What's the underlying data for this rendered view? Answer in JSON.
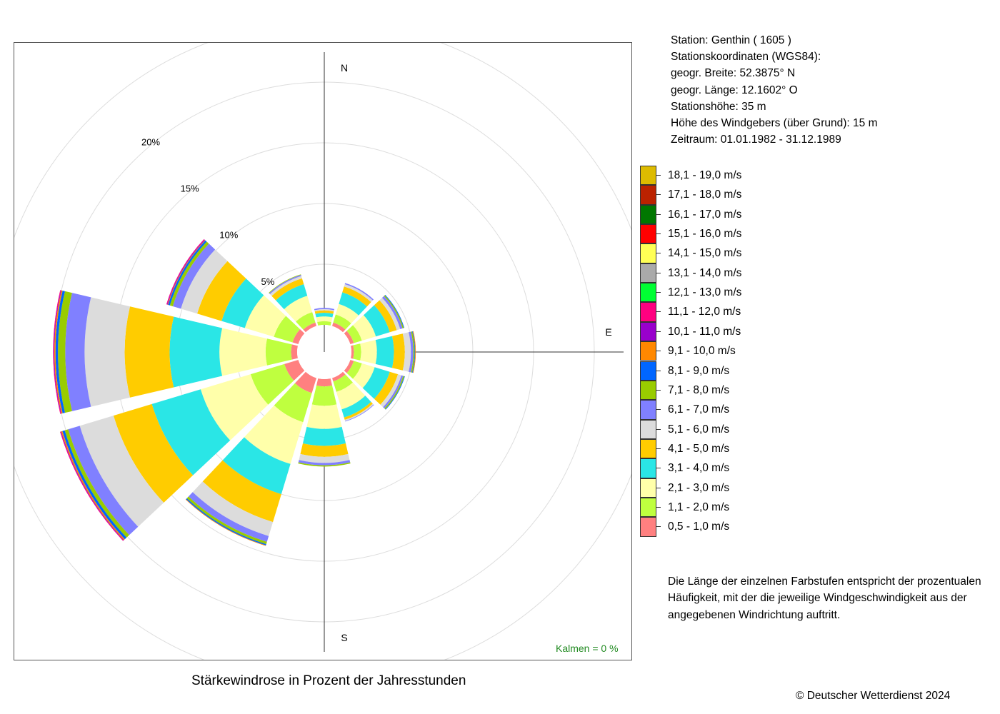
{
  "caption": "Stärkewindrose in Prozent der Jahresstunden",
  "copyright": "© Deutscher Wetterdienst  2024",
  "calm_label": "Kalmen  =  0 %",
  "station_info": [
    "Station:  Genthin  ( 1605 )",
    "Stationskoordinaten (WGS84):",
    "geogr. Breite: 52.3875° N",
    "geogr. Länge: 12.1602° O",
    "Stationshöhe: 35 m",
    "Höhe des Windgebers (über Grund): 15 m",
    "Zeitraum: 01.01.1982 - 31.12.1989"
  ],
  "note_lines": [
    "Die Länge der einzelnen Farbstufen entspricht der prozentualen",
    "Häufigkeit, mit der die jeweilige Windgeschwindigkeit aus der",
    "angegebenen Windrichtung auftritt."
  ],
  "chart_data": {
    "type": "polar-stacked-bar (wind rose)",
    "title": "Stärkewindrose in Prozent der Jahresstunden",
    "radial_ticks": [
      5,
      10,
      15,
      20
    ],
    "radial_tick_labels": [
      "5%",
      "10%",
      "15%",
      "20%"
    ],
    "radial_max": 25,
    "compass_labels": [
      "N",
      "E",
      "S"
    ],
    "calm_percent": 0,
    "directions_deg": [
      0,
      30,
      60,
      90,
      120,
      150,
      180,
      210,
      240,
      270,
      300,
      330
    ],
    "speed_classes": [
      {
        "label": "0,5 - 1,0 m/s",
        "color": "#ff8080"
      },
      {
        "label": "1,1 - 2,0 m/s",
        "color": "#bfff3f"
      },
      {
        "label": "2,1 - 3,0 m/s",
        "color": "#ffffaa"
      },
      {
        "label": "3,1 - 4,0 m/s",
        "color": "#2ae6e6"
      },
      {
        "label": "4,1 - 5,0 m/s",
        "color": "#ffcc00"
      },
      {
        "label": "5,1 - 6,0 m/s",
        "color": "#dcdcdc"
      },
      {
        "label": "6,1 - 7,0 m/s",
        "color": "#8080ff"
      },
      {
        "label": "7,1 - 8,0 m/s",
        "color": "#99cc00"
      },
      {
        "label": "8,1 - 9,0 m/s",
        "color": "#0066ff"
      },
      {
        "label": "9,1 - 10,0 m/s",
        "color": "#ff8800"
      },
      {
        "label": "10,1 - 11,0 m/s",
        "color": "#9900cc"
      },
      {
        "label": "11,1 - 12,0 m/s",
        "color": "#ff0080"
      },
      {
        "label": "12,1 - 13,0 m/s",
        "color": "#00ff33"
      },
      {
        "label": "13,1 - 14,0 m/s",
        "color": "#aaaaaa"
      },
      {
        "label": "14,1 - 15,0 m/s",
        "color": "#ffff55"
      },
      {
        "label": "15,1 - 16,0 m/s",
        "color": "#ff0000"
      },
      {
        "label": "16,1 - 17,0 m/s",
        "color": "#007700"
      },
      {
        "label": "17,1 - 18,0 m/s",
        "color": "#bb2200"
      },
      {
        "label": "18,1 - 19,0 m/s",
        "color": "#ddbb00"
      }
    ],
    "percent_by_direction": [
      [
        0.0,
        0.3,
        0.4,
        0.3,
        0.2,
        0.1,
        0.1
      ],
      [
        0.3,
        0.7,
        0.9,
        1.0,
        0.5,
        0.2,
        0.1
      ],
      [
        0.3,
        0.7,
        1.2,
        1.2,
        0.6,
        0.3,
        0.2,
        0.1,
        0.05
      ],
      [
        0.2,
        0.6,
        1.3,
        1.4,
        0.9,
        0.5,
        0.2,
        0.1,
        0.05,
        0.05
      ],
      [
        0.3,
        0.7,
        1.1,
        1.3,
        0.7,
        0.3,
        0.15,
        0.1,
        0.05
      ],
      [
        0.3,
        0.9,
        1.5,
        0.7,
        0.2,
        0.1,
        0.05
      ],
      [
        0.6,
        1.6,
        1.9,
        1.4,
        0.9,
        0.5,
        0.2,
        0.1
      ],
      [
        1.3,
        2.5,
        3.6,
        2.6,
        2.4,
        1.2,
        0.5,
        0.2,
        0.1,
        0.05
      ],
      [
        1.2,
        2.9,
        4.3,
        4.2,
        3.3,
        2.9,
        1.0,
        0.3,
        0.2,
        0.1,
        0.05,
        0.05
      ],
      [
        0.5,
        2.1,
        3.8,
        4.1,
        3.7,
        3.3,
        1.6,
        0.6,
        0.2,
        0.1,
        0.05,
        0.05
      ],
      [
        0.5,
        1.6,
        2.5,
        2.0,
        2.1,
        1.4,
        0.7,
        0.25,
        0.15,
        0.05,
        0.05,
        0.05
      ],
      [
        0.3,
        0.9,
        1.4,
        1.0,
        0.5,
        0.2,
        0.1,
        0.05
      ]
    ]
  }
}
